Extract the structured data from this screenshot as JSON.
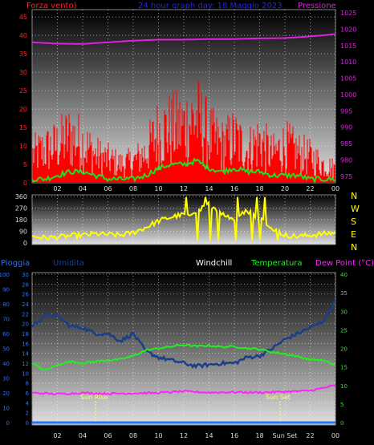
{
  "header": {
    "wind_label": "Forza vento)",
    "title": "24 hour graph day: 18 Maggio 2023",
    "pressure_label": "Pressione"
  },
  "direction_compass": [
    "N",
    "W",
    "S",
    "E",
    "N"
  ],
  "legend_bottom": {
    "rain": "Pioggia",
    "humidity": "Umidita",
    "windchill": "Windchill",
    "temperature": "Temperatura",
    "dewpoint": "Dew Point (°C)"
  },
  "markers": {
    "sunrise": "Sun Rise",
    "sunset": "Sun Set"
  },
  "colors": {
    "wind": "#ff0000",
    "gust_avg": "#22dd22",
    "pressure": "#dd22dd",
    "direction": "#ffff00",
    "humidity": "#1a3f8a",
    "temperature": "#22ee22",
    "dewpoint": "#ff22ff",
    "rain": "#1e78ff",
    "wind_axis": "#ff2222",
    "temp_axis": "#22ee22",
    "rain_axis": "#3a6fd8"
  },
  "chart_data": [
    {
      "type": "line",
      "title": "24 hour graph day: 18 Maggio 2023",
      "x_ticks": [
        "02",
        "04",
        "06",
        "08",
        "10",
        "12",
        "14",
        "16",
        "18",
        "20",
        "22",
        "00"
      ],
      "y_left": {
        "label": "Forza vento)",
        "ticks": [
          0,
          5,
          10,
          15,
          20,
          25,
          30,
          35,
          40,
          45
        ],
        "ylim": [
          0,
          47
        ]
      },
      "y_right": {
        "label": "Pressione",
        "ticks": [
          975,
          980,
          985,
          990,
          995,
          1000,
          1005,
          1010,
          1015,
          1020,
          1025
        ],
        "ylim": [
          973,
          1026
        ]
      },
      "series": [
        {
          "kind": "wind_gust_bars",
          "x_hours": [
            0,
            1,
            2,
            3,
            4,
            5,
            6,
            7,
            8,
            9,
            10,
            11,
            12,
            13,
            14,
            15,
            16,
            17,
            18,
            19,
            20,
            21,
            22,
            23,
            24
          ],
          "values": [
            12,
            14,
            16,
            20,
            17,
            12,
            10,
            8,
            9,
            13,
            22,
            23,
            24,
            28,
            20,
            16,
            19,
            14,
            18,
            12,
            16,
            13,
            11,
            8,
            6
          ]
        },
        {
          "kind": "wind_average",
          "x_hours": [
            0,
            1,
            2,
            3,
            4,
            5,
            6,
            7,
            8,
            9,
            10,
            11,
            12,
            13,
            14,
            15,
            16,
            17,
            18,
            19,
            20,
            21,
            22,
            23,
            24
          ],
          "values": [
            1,
            1,
            2,
            3,
            3,
            2,
            1,
            1,
            1,
            2,
            4,
            5,
            5,
            6,
            4,
            3,
            4,
            3,
            3,
            2,
            2,
            2,
            1,
            1,
            1
          ]
        },
        {
          "kind": "pressure",
          "x_hours": [
            0,
            2,
            4,
            6,
            8,
            10,
            12,
            14,
            16,
            18,
            20,
            22,
            24
          ],
          "values": [
            1016,
            1015.6,
            1015.5,
            1016,
            1016.5,
            1016.8,
            1016.8,
            1017,
            1017,
            1017.2,
            1017.3,
            1017.8,
            1018.5
          ]
        }
      ]
    },
    {
      "type": "line",
      "y_ticks": [
        0,
        90,
        180,
        270,
        360
      ],
      "x_ticks": [
        "02",
        "04",
        "06",
        "08",
        "10",
        "12",
        "14",
        "16",
        "18",
        "20",
        "22",
        "00"
      ],
      "series": [
        {
          "name": "direction",
          "x_hours": [
            0,
            1,
            2,
            3,
            4,
            5,
            6,
            7,
            8,
            9,
            10,
            11,
            12,
            13,
            14,
            15,
            16,
            17,
            18,
            19,
            20,
            21,
            22,
            23,
            24
          ],
          "values": [
            50,
            40,
            45,
            55,
            60,
            70,
            65,
            60,
            80,
            120,
            170,
            200,
            220,
            240,
            300,
            230,
            180,
            250,
            200,
            120,
            60,
            50,
            60,
            70,
            80
          ]
        }
      ]
    },
    {
      "type": "line",
      "x_ticks": [
        "02",
        "04",
        "06",
        "08",
        "10",
        "12",
        "14",
        "16",
        "18",
        "Sun Set",
        "22",
        "00"
      ],
      "y_left_rain": {
        "label": "Pioggia",
        "ticks": [
          0,
          10,
          20,
          30,
          40,
          50,
          60,
          70,
          80,
          90,
          100
        ]
      },
      "y_left_humidity": {
        "label": "Umidita",
        "ticks": [
          0,
          2,
          4,
          6,
          8,
          10,
          12,
          14,
          16,
          18,
          20,
          22,
          24,
          26,
          28,
          30
        ]
      },
      "y_right": {
        "label": "Dew Point (°C)",
        "ticks": [
          0,
          5,
          10,
          15,
          20,
          25,
          30,
          35,
          40
        ]
      },
      "series": [
        {
          "name": "humidity",
          "x_hours": [
            0,
            1,
            2,
            3,
            4,
            5,
            6,
            7,
            8,
            9,
            10,
            11,
            12,
            13,
            14,
            15,
            16,
            17,
            18,
            19,
            20,
            21,
            22,
            23,
            24
          ],
          "values": [
            65,
            72,
            72,
            65,
            64,
            60,
            60,
            55,
            60,
            48,
            44,
            42,
            40,
            38,
            39,
            40,
            40,
            44,
            45,
            50,
            56,
            60,
            64,
            68,
            82
          ]
        },
        {
          "name": "temperature",
          "x_hours": [
            0,
            1,
            2,
            3,
            4,
            5,
            6,
            7,
            8,
            9,
            10,
            11,
            12,
            13,
            14,
            15,
            16,
            17,
            18,
            19,
            20,
            21,
            22,
            23,
            24
          ],
          "values": [
            16,
            14,
            15.5,
            16.5,
            16,
            16.5,
            16.8,
            17,
            18,
            19.5,
            20,
            20.5,
            21,
            20.5,
            20.8,
            20.4,
            20.5,
            20,
            19.8,
            19,
            18.5,
            17.8,
            17,
            16.8,
            15.5
          ]
        },
        {
          "name": "dewpoint",
          "x_hours": [
            0,
            2,
            4,
            6,
            8,
            10,
            12,
            14,
            16,
            18,
            20,
            22,
            24
          ],
          "values": [
            8,
            7.7,
            8,
            7.8,
            7.9,
            8,
            8.4,
            8.1,
            8.2,
            8.1,
            8.3,
            8.6,
            10
          ]
        },
        {
          "name": "rain",
          "x_hours": [
            0,
            24
          ],
          "values": [
            0,
            0
          ]
        }
      ]
    }
  ]
}
